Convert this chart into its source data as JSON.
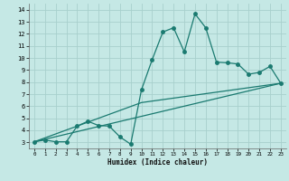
{
  "xlabel": "Humidex (Indice chaleur)",
  "xlim": [
    -0.5,
    23.5
  ],
  "ylim": [
    2.5,
    14.5
  ],
  "xticks": [
    0,
    1,
    2,
    3,
    4,
    5,
    6,
    7,
    8,
    9,
    10,
    11,
    12,
    13,
    14,
    15,
    16,
    17,
    18,
    19,
    20,
    21,
    22,
    23
  ],
  "yticks": [
    3,
    4,
    5,
    6,
    7,
    8,
    9,
    10,
    11,
    12,
    13,
    14
  ],
  "bg_color": "#c5e8e5",
  "grid_color": "#a8d0cc",
  "line_color": "#1a7a70",
  "line1_x": [
    0,
    1,
    2,
    3,
    4,
    5,
    6,
    7,
    8,
    9,
    10,
    11,
    12,
    13,
    14,
    15,
    16,
    17,
    18,
    19,
    20,
    21,
    22,
    23
  ],
  "line1_y": [
    3.05,
    3.2,
    3.05,
    3.05,
    4.35,
    4.75,
    4.4,
    4.35,
    3.45,
    2.85,
    7.35,
    9.85,
    12.15,
    12.5,
    10.5,
    13.65,
    12.5,
    9.65,
    9.6,
    9.5,
    8.65,
    8.8,
    9.3,
    7.9
  ],
  "line2_x": [
    0,
    10,
    23
  ],
  "line2_y": [
    3.05,
    6.3,
    7.9
  ],
  "line3_x": [
    0,
    23
  ],
  "line3_y": [
    3.05,
    7.9
  ],
  "marker_size": 2.5,
  "linewidth": 0.9
}
